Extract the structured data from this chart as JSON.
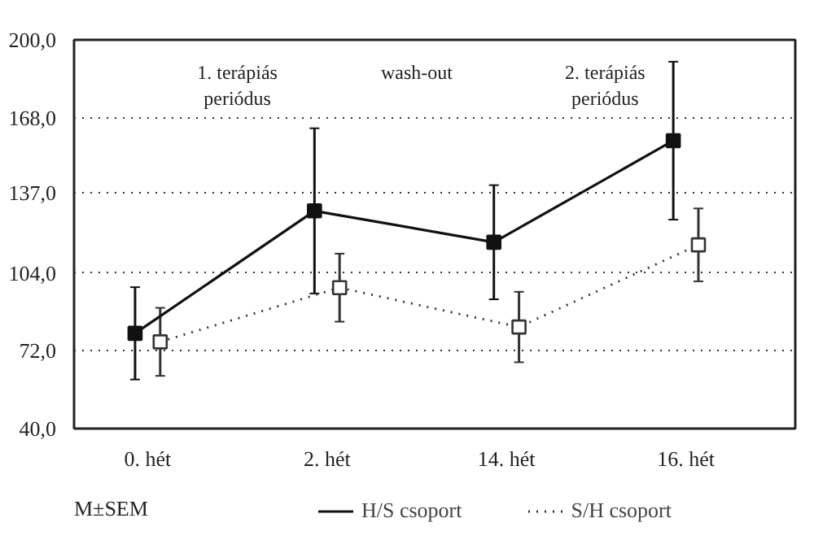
{
  "chart_data": {
    "type": "line",
    "categories": [
      "0. hét",
      "2. hét",
      "14. hét",
      "16. hét"
    ],
    "series": [
      {
        "name": "H/S csoport",
        "color": "#111111",
        "line_style": "solid",
        "marker": "square",
        "values": [
          79.2,
          129.6,
          116.7,
          158.5
        ],
        "errors": [
          19,
          34,
          23.5,
          32.5
        ]
      },
      {
        "name": "S/H csoport",
        "color": "#333333",
        "line_style": "dotted",
        "marker": "square",
        "values": [
          75.7,
          98,
          81.8,
          115.6
        ],
        "errors": [
          14,
          14,
          14.5,
          15
        ]
      }
    ],
    "ylim": [
      40,
      200
    ],
    "yticks": [
      {
        "value": 40,
        "label": "40,0"
      },
      {
        "value": 72,
        "label": "72,0"
      },
      {
        "value": 104,
        "label": "104,0"
      },
      {
        "value": 137,
        "label": "137,0"
      },
      {
        "value": 168,
        "label": "168,0"
      },
      {
        "value": 200,
        "label": "200,0"
      }
    ],
    "grid": "y",
    "legend": "bottom",
    "annotations": [
      "1. terápiás periódus",
      "wash-out",
      "2. terápiás periódus",
      "M±SEM"
    ]
  }
}
